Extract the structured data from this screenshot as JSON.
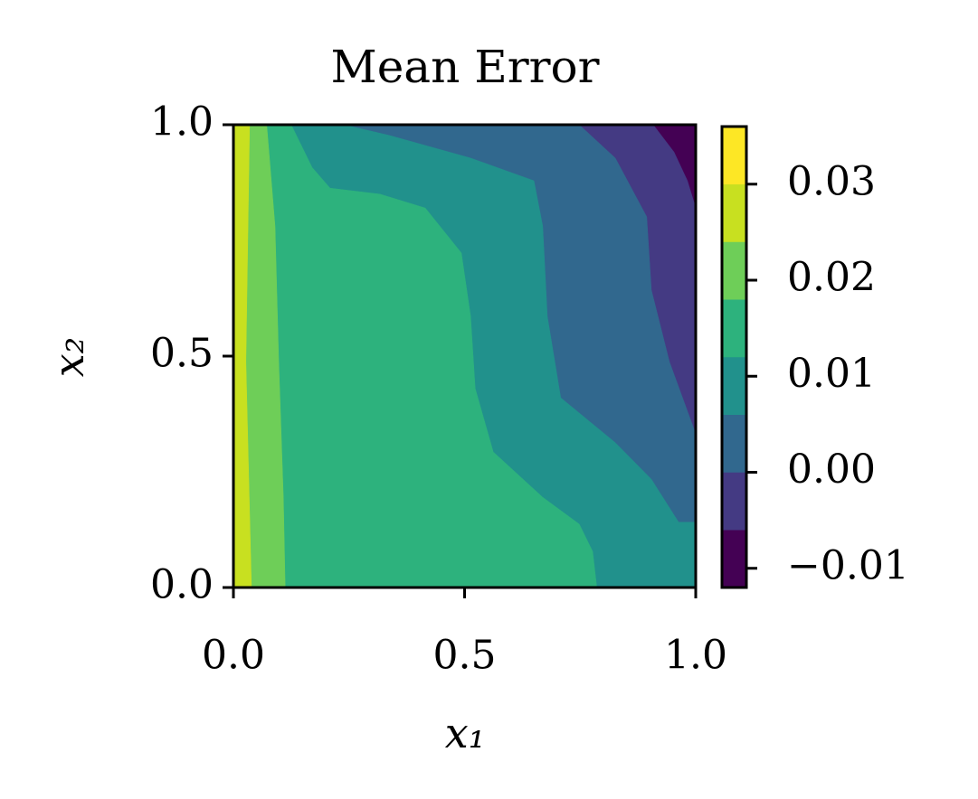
{
  "chart_data": {
    "type": "contourf",
    "title": "Mean Error",
    "x_label": "x₁",
    "y_label": "x₂",
    "xlim": [
      0,
      1
    ],
    "ylim": [
      0,
      1
    ],
    "xticks": [
      {
        "value": 0,
        "label": "0.0"
      },
      {
        "value": 0.5,
        "label": "0.5"
      },
      {
        "value": 1,
        "label": "1.0"
      }
    ],
    "yticks": [
      {
        "value": 0,
        "label": "0.0"
      },
      {
        "value": 0.5,
        "label": "0.5"
      },
      {
        "value": 1,
        "label": "1.0"
      }
    ],
    "levels": [
      -0.012,
      -0.006,
      0,
      0.006,
      0.012,
      0.018,
      0.024,
      0.03,
      0.036
    ],
    "colors": [
      "#440154",
      "#443a83",
      "#31688e",
      "#21918c",
      "#2db27d",
      "#6ece58",
      "#c8e020",
      "#fde725"
    ],
    "colorbar_ticks": [
      {
        "value": -0.01,
        "label": "−0.01"
      },
      {
        "value": 0,
        "label": "0.00"
      },
      {
        "value": 0.01,
        "label": "0.01"
      },
      {
        "value": 0.02,
        "label": "0.02"
      },
      {
        "value": 0.03,
        "label": "0.03"
      }
    ],
    "contours": [
      {
        "level": -0.006,
        "x": [
          0.908,
          0.953,
          0.982,
          1
        ],
        "y": [
          1,
          0.941,
          0.879,
          0.82
        ]
      },
      {
        "level": 0,
        "x": [
          0.748,
          0.826,
          0.894,
          0.904,
          0.943,
          1
        ],
        "y": [
          1,
          0.928,
          0.801,
          0.643,
          0.488,
          0.332
        ]
      },
      {
        "level": 0.006,
        "x": [
          0.239,
          0.337,
          0.513,
          0.65,
          0.669,
          0.679,
          0.708,
          0.826,
          0.904,
          0.963,
          1
        ],
        "y": [
          1,
          0.977,
          0.928,
          0.879,
          0.781,
          0.586,
          0.41,
          0.313,
          0.234,
          0.141,
          0.141
        ]
      },
      {
        "level": 0.012,
        "x": [
          0.125,
          0.17,
          0.209,
          0.317,
          0.415,
          0.493,
          0.513,
          0.523,
          0.562,
          0.669,
          0.748,
          0.777,
          0.786
        ],
        "y": [
          1,
          0.908,
          0.863,
          0.85,
          0.82,
          0.723,
          0.586,
          0.43,
          0.293,
          0.195,
          0.137,
          0.078,
          0
        ]
      },
      {
        "level": 0.018,
        "x": [
          0.072,
          0.09,
          0.098,
          0.108,
          0.112
        ],
        "y": [
          1,
          0.781,
          0.488,
          0.195,
          0
        ]
      },
      {
        "level": 0.024,
        "x": [
          0.035,
          0.027,
          0.039
        ],
        "y": [
          1,
          0.488,
          0
        ]
      }
    ]
  }
}
